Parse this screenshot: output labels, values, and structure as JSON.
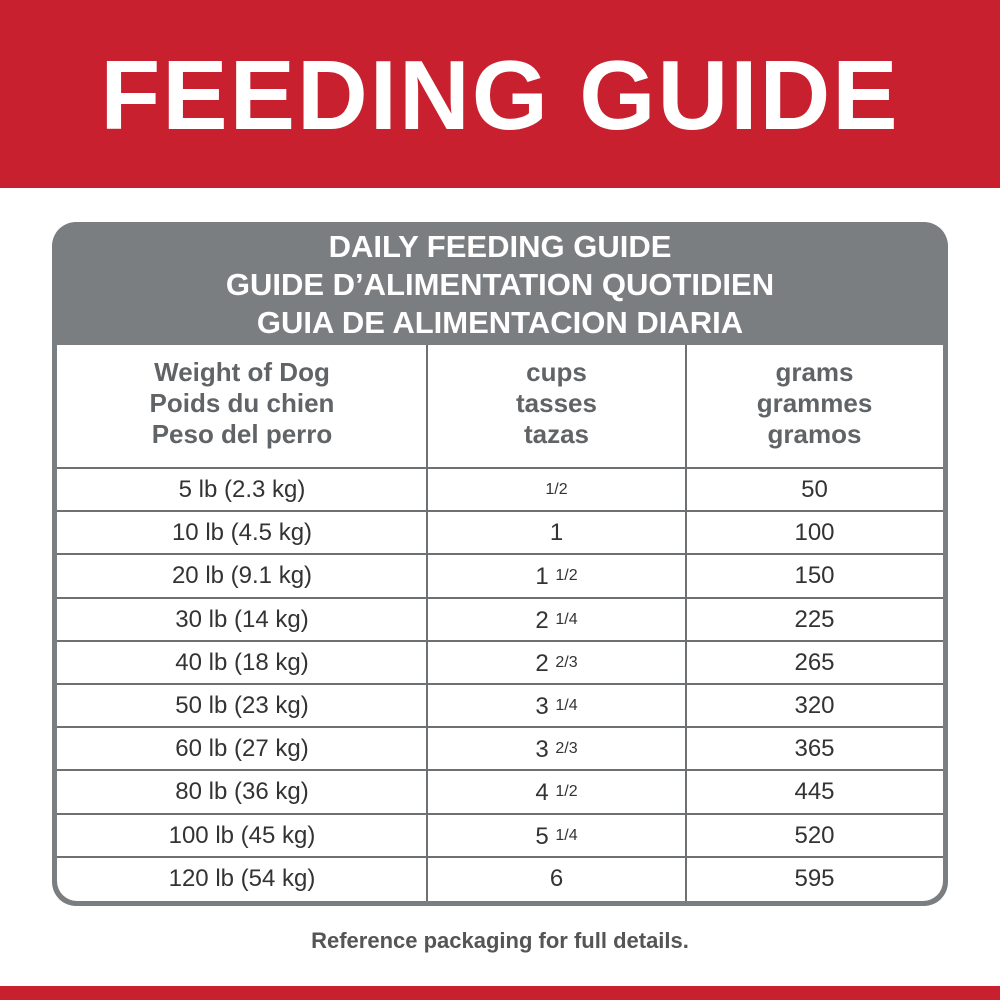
{
  "header": {
    "title": "FEEDING GUIDE"
  },
  "table": {
    "title_lines": [
      "DAILY FEEDING GUIDE",
      "GUIDE D’ALIMENTATION QUOTIDIEN",
      "GUIA DE ALIMENTACION DIARIA"
    ],
    "columns": [
      [
        "Weight of Dog",
        "Poids du chien",
        "Peso del perro"
      ],
      [
        "cups",
        "tasses",
        "tazas"
      ],
      [
        "grams",
        "grammes",
        "gramos"
      ]
    ],
    "rows": [
      [
        "5 lb (2.3 kg)",
        {
          "fraction": "1/2"
        },
        "50"
      ],
      [
        "10 lb (4.5 kg)",
        {
          "whole": "1"
        },
        "100"
      ],
      [
        "20 lb (9.1 kg)",
        {
          "whole": "1",
          "fraction": "1/2"
        },
        "150"
      ],
      [
        "30 lb (14 kg)",
        {
          "whole": "2",
          "fraction": "1/4"
        },
        "225"
      ],
      [
        "40 lb (18 kg)",
        {
          "whole": "2",
          "fraction": "2/3"
        },
        "265"
      ],
      [
        "50 lb (23 kg)",
        {
          "whole": "3",
          "fraction": "1/4"
        },
        "320"
      ],
      [
        "60 lb (27 kg)",
        {
          "whole": "3",
          "fraction": "2/3"
        },
        "365"
      ],
      [
        "80 lb (36 kg)",
        {
          "whole": "4",
          "fraction": "1/2"
        },
        "445"
      ],
      [
        "100 lb (45 kg)",
        {
          "whole": "5",
          "fraction": "1/4"
        },
        "520"
      ],
      [
        "120 lb (54 kg)",
        {
          "whole": "6"
        },
        "595"
      ]
    ]
  },
  "footer": {
    "note": "Reference packaging for full details."
  }
}
